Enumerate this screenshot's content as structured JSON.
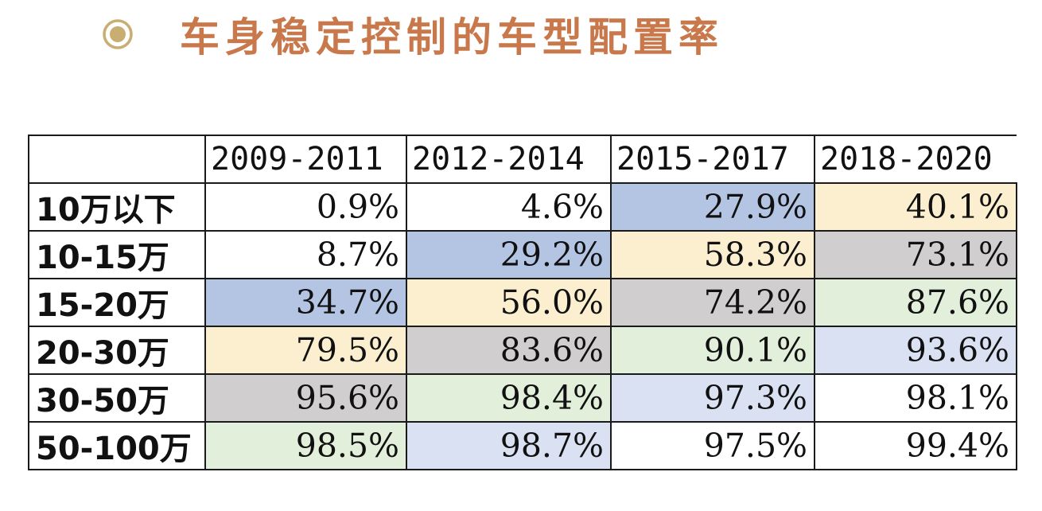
{
  "title": "车身稳定控制的车型配置率",
  "colors": {
    "title": "#c8784a",
    "bullet": "#c9ae72",
    "blue": "#b4c5e4",
    "yellow": "#fcefcf",
    "gray": "#d0cece",
    "green": "#e2efda",
    "lightblue": "#d9e1f2",
    "white": "#ffffff"
  },
  "table": {
    "headers": [
      "",
      "2009-2011",
      "2012-2014",
      "2015-2017",
      "2018-2020"
    ],
    "rows": [
      {
        "label": "10万以下",
        "values": [
          "0.9%",
          "4.6%",
          "27.9%",
          "40.1%"
        ],
        "fills": [
          "white",
          "white",
          "blue",
          "yellow"
        ]
      },
      {
        "label": "10-15万",
        "values": [
          "8.7%",
          "29.2%",
          "58.3%",
          "73.1%"
        ],
        "fills": [
          "white",
          "blue",
          "yellow",
          "gray"
        ]
      },
      {
        "label": "15-20万",
        "values": [
          "34.7%",
          "56.0%",
          "74.2%",
          "87.6%"
        ],
        "fills": [
          "blue",
          "yellow",
          "gray",
          "green"
        ]
      },
      {
        "label": "20-30万",
        "values": [
          "79.5%",
          "83.6%",
          "90.1%",
          "93.6%"
        ],
        "fills": [
          "yellow",
          "gray",
          "green",
          "lightblue"
        ]
      },
      {
        "label": "30-50万",
        "values": [
          "95.6%",
          "98.4%",
          "97.3%",
          "98.1%"
        ],
        "fills": [
          "gray",
          "green",
          "lightblue",
          "white"
        ]
      },
      {
        "label": "50-100万",
        "values": [
          "98.5%",
          "98.7%",
          "97.5%",
          "99.4%"
        ],
        "fills": [
          "green",
          "lightblue",
          "white",
          "white"
        ]
      }
    ]
  }
}
